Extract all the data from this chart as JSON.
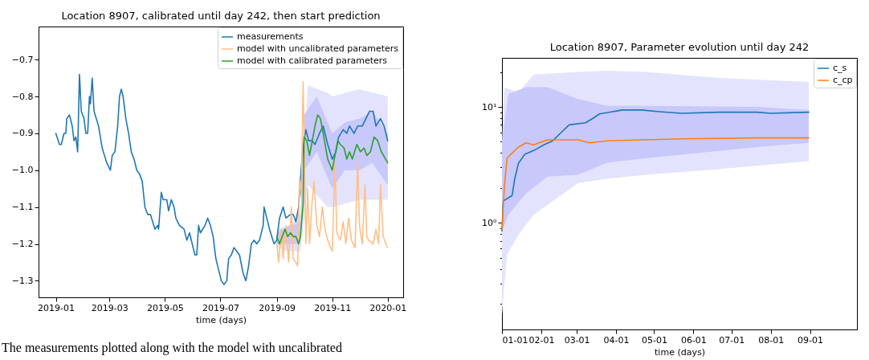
{
  "chart_data": [
    {
      "type": "line",
      "title": "Location 8907, calibrated until day 242, then start prediction",
      "xlabel": "time (days)",
      "xlim": [
        "2018-12-13",
        "2020-01-18"
      ],
      "ylim": [
        -1.345,
        -0.61
      ],
      "xticks": [
        "2019-01",
        "2019-03",
        "2019-05",
        "2019-07",
        "2019-09",
        "2019-11",
        "2020-01"
      ],
      "yticks": [
        {
          "value": -1.3,
          "label": "−1.3"
        },
        {
          "value": -1.2,
          "label": "−1.2"
        },
        {
          "value": -1.1,
          "label": "−1.1"
        },
        {
          "value": -1.0,
          "label": "−1.0"
        },
        {
          "value": -0.9,
          "label": "−0.9"
        },
        {
          "value": -0.8,
          "label": "−0.8"
        },
        {
          "value": -0.7,
          "label": "−0.7"
        }
      ],
      "legend": "top right",
      "annotations": [
        "The measurements plotted along with the model with uncalibrated"
      ],
      "series": [
        {
          "name": "measurements",
          "color": "#1f77b4",
          "x": [
            "2019-01-01",
            "2019-01-05",
            "2019-01-07",
            "2019-01-10",
            "2019-01-12",
            "2019-01-13",
            "2019-01-16",
            "2019-01-19",
            "2019-01-21",
            "2019-01-23",
            "2019-01-25",
            "2019-01-27",
            "2019-01-29",
            "2019-02-01",
            "2019-02-03",
            "2019-02-05",
            "2019-02-07",
            "2019-02-08",
            "2019-02-10",
            "2019-02-12",
            "2019-02-17",
            "2019-02-21",
            "2019-02-26",
            "2019-03-02",
            "2019-03-04",
            "2019-03-07",
            "2019-03-10",
            "2019-03-12",
            "2019-03-14",
            "2019-03-16",
            "2019-03-19",
            "2019-03-22",
            "2019-03-25",
            "2019-03-28",
            "2019-03-31",
            "2019-04-03",
            "2019-04-06",
            "2019-04-09",
            "2019-04-12",
            "2019-04-15",
            "2019-04-20",
            "2019-04-23",
            "2019-04-24",
            "2019-04-27",
            "2019-04-29",
            "2019-05-03",
            "2019-05-05",
            "2019-05-08",
            "2019-05-11",
            "2019-05-13",
            "2019-05-17",
            "2019-05-22",
            "2019-05-25",
            "2019-05-28",
            "2019-05-31",
            "2019-06-03",
            "2019-06-05",
            "2019-06-07",
            "2019-06-09",
            "2019-06-14",
            "2019-06-17",
            "2019-06-20",
            "2019-06-23",
            "2019-06-26",
            "2019-06-29",
            "2019-07-02",
            "2019-07-05",
            "2019-07-08",
            "2019-07-10",
            "2019-07-13",
            "2019-07-16",
            "2019-07-19",
            "2019-07-22",
            "2019-07-26",
            "2019-07-29",
            "2019-08-01",
            "2019-08-04",
            "2019-08-07",
            "2019-08-10",
            "2019-08-13",
            "2019-08-17",
            "2019-08-18",
            "2019-08-21",
            "2019-08-24",
            "2019-08-29",
            "2019-09-01",
            "2019-09-04",
            "2019-09-08",
            "2019-09-11",
            "2019-09-16",
            "2019-09-19",
            "2019-09-22",
            "2019-09-25",
            "2019-09-28",
            "2019-10-01",
            "2019-10-03",
            "2019-10-06",
            "2019-10-10",
            "2019-10-13",
            "2019-10-18",
            "2019-10-22",
            "2019-10-27",
            "2019-11-01",
            "2019-11-05",
            "2019-11-08",
            "2019-11-13",
            "2019-11-17",
            "2019-11-20",
            "2019-11-25",
            "2019-11-29",
            "2019-12-04",
            "2019-12-08",
            "2019-12-12",
            "2019-12-16",
            "2019-12-19",
            "2019-12-24",
            "2019-12-28",
            "2020-01-01"
          ],
          "values": [
            -0.9,
            -0.93,
            -0.93,
            -0.9,
            -0.9,
            -0.86,
            -0.85,
            -0.88,
            -0.92,
            -0.91,
            -0.95,
            -0.74,
            -0.84,
            -0.86,
            -0.9,
            -0.9,
            -0.8,
            -0.82,
            -0.75,
            -0.84,
            -0.88,
            -0.94,
            -0.98,
            -1.0,
            -0.96,
            -0.95,
            -0.88,
            -0.8,
            -0.78,
            -0.8,
            -0.86,
            -0.9,
            -0.95,
            -0.97,
            -1.0,
            -1.01,
            -1.03,
            -1.1,
            -1.12,
            -1.12,
            -1.16,
            -1.15,
            -1.16,
            -1.06,
            -1.08,
            -1.08,
            -1.11,
            -1.08,
            -1.1,
            -1.13,
            -1.15,
            -1.16,
            -1.19,
            -1.17,
            -1.2,
            -1.23,
            -1.23,
            -1.15,
            -1.17,
            -1.15,
            -1.13,
            -1.15,
            -1.18,
            -1.24,
            -1.27,
            -1.3,
            -1.31,
            -1.3,
            -1.24,
            -1.23,
            -1.21,
            -1.22,
            -1.23,
            -1.28,
            -1.3,
            -1.26,
            -1.2,
            -1.19,
            -1.2,
            -1.19,
            -1.15,
            -1.1,
            -1.13,
            -1.16,
            -1.2,
            -1.19,
            -1.13,
            -1.1,
            -1.13,
            -1.12,
            -1.12,
            -1.14,
            -1.1,
            -0.99,
            -0.92,
            -0.89,
            -0.92,
            -0.92,
            -0.93,
            -0.9,
            -0.88,
            -0.93,
            -0.97,
            -0.95,
            -0.91,
            -0.89,
            -0.9,
            -0.88,
            -0.9,
            -0.88,
            -0.88,
            -0.86,
            -0.84,
            -0.84,
            -0.88,
            -0.86,
            -0.88,
            -0.92
          ]
        },
        {
          "name": "model with uncalibrated parameters",
          "color": "#ffbf87",
          "x": [
            "2019-09-01",
            "2019-09-03",
            "2019-09-06",
            "2019-09-08",
            "2019-09-11",
            "2019-09-14",
            "2019-09-17",
            "2019-09-19",
            "2019-09-22",
            "2019-09-24",
            "2019-09-26",
            "2019-09-28",
            "2019-09-30",
            "2019-10-03",
            "2019-10-05",
            "2019-10-07",
            "2019-10-10",
            "2019-10-12",
            "2019-10-15",
            "2019-10-18",
            "2019-10-21",
            "2019-10-24",
            "2019-10-27",
            "2019-11-01",
            "2019-11-04",
            "2019-11-06",
            "2019-11-10",
            "2019-11-13",
            "2019-11-16",
            "2019-11-19",
            "2019-11-22",
            "2019-11-26",
            "2019-11-29",
            "2019-12-01",
            "2019-12-04",
            "2019-12-07",
            "2019-12-09",
            "2019-12-11",
            "2019-12-16",
            "2019-12-19",
            "2019-12-22",
            "2019-12-24",
            "2019-12-27",
            "2019-12-30",
            "2020-01-01"
          ],
          "values": [
            -1.2,
            -1.25,
            -1.16,
            -1.24,
            -1.15,
            -1.25,
            -1.1,
            -1.24,
            -1.25,
            -1.26,
            -1.02,
            -1.07,
            -0.76,
            -1.2,
            -1.05,
            -1.2,
            -1.08,
            -1.03,
            -1.15,
            -1.18,
            -1.1,
            -1.16,
            -1.19,
            -1.22,
            -0.98,
            -1.17,
            -1.19,
            -1.14,
            -1.2,
            -1.13,
            -1.19,
            -1.21,
            -0.98,
            -1.15,
            -1.2,
            -1.04,
            -1.18,
            -1.19,
            -1.2,
            -1.16,
            -1.2,
            -1.04,
            -1.18,
            -1.2,
            -1.21
          ]
        },
        {
          "name": "model with calibrated parameters",
          "color": "#2ca02c",
          "x": [
            "2019-09-01",
            "2019-09-04",
            "2019-09-07",
            "2019-09-10",
            "2019-09-13",
            "2019-09-16",
            "2019-09-19",
            "2019-09-22",
            "2019-09-25",
            "2019-09-27",
            "2019-09-30",
            "2019-10-01",
            "2019-10-04",
            "2019-10-07",
            "2019-10-10",
            "2019-10-13",
            "2019-10-16",
            "2019-10-19",
            "2019-10-22",
            "2019-10-27",
            "2019-11-01",
            "2019-11-04",
            "2019-11-07",
            "2019-11-10",
            "2019-11-14",
            "2019-11-17",
            "2019-11-20",
            "2019-11-23",
            "2019-11-28",
            "2019-12-02",
            "2019-12-06",
            "2019-12-09",
            "2019-12-13",
            "2019-12-17",
            "2019-12-21",
            "2019-12-25",
            "2020-01-01"
          ],
          "values": [
            -1.18,
            -1.2,
            -1.18,
            -1.16,
            -1.18,
            -1.17,
            -1.18,
            -1.18,
            -1.2,
            -1.18,
            -1.09,
            -0.91,
            -0.92,
            -0.96,
            -0.92,
            -0.88,
            -0.85,
            -0.86,
            -0.9,
            -0.97,
            -1.0,
            -0.96,
            -0.92,
            -0.93,
            -0.94,
            -0.97,
            -0.95,
            -0.97,
            -0.93,
            -0.95,
            -0.94,
            -0.96,
            -0.95,
            -0.91,
            -0.92,
            -0.95,
            -0.98
          ]
        },
        {
          "color": "#e3e3fd",
          "x": [
            "2019-09-01",
            "2019-09-15",
            "2019-09-27",
            "2019-10-05",
            "2019-10-27",
            "2019-11-01",
            "2019-12-01",
            "2020-01-01"
          ],
          "values": [
            null,
            null,
            null,
            null,
            null,
            null,
            null,
            null
          ],
          "lower": [
            -1.21,
            -1.22,
            -1.22,
            -1.04,
            -1.1,
            -1.1,
            -1.08,
            -1.08
          ],
          "upper": [
            -1.16,
            -1.15,
            -1.12,
            -0.77,
            -0.79,
            -0.8,
            -0.78,
            -0.8
          ]
        },
        {
          "color": "#c8c8fb",
          "x": [
            "2019-09-01",
            "2019-09-15",
            "2019-09-27",
            "2019-10-01",
            "2019-10-15",
            "2019-11-01",
            "2019-11-15",
            "2019-12-01",
            "2019-12-15",
            "2020-01-01"
          ],
          "values": [
            null,
            null,
            null,
            null,
            null,
            null,
            null,
            null,
            null,
            null
          ],
          "lower": [
            -1.2,
            -1.2,
            -1.2,
            -1.0,
            -0.95,
            -1.05,
            -1.0,
            -1.0,
            -0.98,
            -1.04
          ],
          "upper": [
            -1.17,
            -1.15,
            -1.14,
            -0.85,
            -0.8,
            -0.9,
            -0.87,
            -0.86,
            -0.84,
            -0.9
          ]
        }
      ]
    },
    {
      "type": "line",
      "title": "Location 8907, Parameter evolution until day 242",
      "xlabel": "time (days)",
      "log": "y",
      "xlim": [
        "--01-01",
        "--10-08"
      ],
      "ylim": [
        0.12,
        26.5
      ],
      "xticks": [
        {
          "value": "--01-01",
          "label": "01-01"
        },
        {
          "value": "--02-01",
          "label": "02-01"
        },
        {
          "value": "--03-01",
          "label": "03-01"
        },
        {
          "value": "--04-01",
          "label": "04-01"
        },
        {
          "value": "--05-01",
          "label": "05-01"
        },
        {
          "value": "--06-01",
          "label": "06-01"
        },
        {
          "value": "--07-01",
          "label": "07-01"
        },
        {
          "value": "--08-01",
          "label": "08-01"
        },
        {
          "value": "--09-01",
          "label": "09-01"
        }
      ],
      "yticks": [
        {
          "value": 0.2,
          "label": null
        },
        {
          "value": 0.3,
          "label": null
        },
        {
          "value": 0.4,
          "label": null
        },
        {
          "value": 0.5,
          "label": null
        },
        {
          "value": 0.6,
          "label": null
        },
        {
          "value": 0.7,
          "label": null
        },
        {
          "value": 0.8,
          "label": null
        },
        {
          "value": 0.9,
          "label": null
        },
        {
          "value": 1,
          "label": "10⁰"
        },
        {
          "value": 2,
          "label": null
        },
        {
          "value": 3,
          "label": null
        },
        {
          "value": 4,
          "label": null
        },
        {
          "value": 5,
          "label": null
        },
        {
          "value": 6,
          "label": null
        },
        {
          "value": 7,
          "label": null
        },
        {
          "value": 8,
          "label": null
        },
        {
          "value": 9,
          "label": null
        },
        {
          "value": 10,
          "label": "10¹"
        },
        {
          "value": 20,
          "label": null
        }
      ],
      "legend": "top right",
      "series": [
        {
          "color": "#e3e3fd",
          "x": [
            "--01-01",
            "--01-03",
            "--01-05",
            "--01-14",
            "--01-26",
            "--03-02",
            "--03-25",
            "--04-24",
            "--06-21",
            "--08-31"
          ],
          "values": [
            null,
            null,
            null,
            null,
            null,
            null,
            null,
            null,
            null,
            null
          ],
          "lower": [
            0.16,
            0.3,
            0.53,
            0.79,
            1.17,
            2.2,
            2.4,
            2.6,
            2.9,
            3.4
          ],
          "upper": [
            4.9,
            14.5,
            14.5,
            13.3,
            19,
            20,
            20.5,
            20,
            17.8,
            16.4
          ]
        },
        {
          "color": "#c8c8fb",
          "x": [
            "--01-01",
            "--01-06",
            "--01-20",
            "--02-06",
            "--03-02",
            "--03-25",
            "--04-24",
            "--07-21",
            "--08-31"
          ],
          "values": [
            null,
            null,
            null,
            null,
            null,
            null,
            null,
            null,
            null
          ],
          "lower": [
            0.85,
            1.17,
            1.8,
            2.5,
            2.6,
            3.3,
            3.6,
            4.5,
            4.9
          ],
          "upper": [
            4.9,
            12.9,
            14.8,
            14.8,
            11.7,
            10.2,
            10.2,
            10.0,
            9.4
          ]
        },
        {
          "name": "c_s",
          "color": "#1f77b4",
          "x": [
            "--01-01",
            "--01-02",
            "--01-09",
            "--01-11",
            "--01-14",
            "--01-19",
            "--01-26",
            "--02-03",
            "--02-10",
            "--02-18",
            "--02-23",
            "--03-08",
            "--03-14",
            "--03-19",
            "--04-06",
            "--04-21",
            "--05-05",
            "--05-23",
            "--06-21",
            "--07-21",
            "--08-01",
            "--08-31"
          ],
          "values": [
            0.85,
            1.54,
            1.72,
            2.37,
            3.26,
            3.9,
            4.2,
            4.7,
            5.1,
            6.2,
            7.0,
            7.3,
            8.0,
            8.7,
            9.4,
            9.4,
            9.1,
            8.8,
            9.0,
            9.0,
            8.8,
            9.0
          ]
        },
        {
          "name": "c_cp",
          "color": "#ff7f0e",
          "x": [
            "--01-01",
            "--01-03",
            "--01-05",
            "--01-09",
            "--01-14",
            "--01-20",
            "--01-26",
            "--02-06",
            "--03-02",
            "--03-11",
            "--03-25",
            "--04-24",
            "--05-23",
            "--07-21",
            "--08-31"
          ],
          "values": [
            0.88,
            2.1,
            3.6,
            4.0,
            4.5,
            4.9,
            4.7,
            5.2,
            5.2,
            4.9,
            5.1,
            5.2,
            5.3,
            5.4,
            5.4
          ]
        }
      ]
    }
  ]
}
